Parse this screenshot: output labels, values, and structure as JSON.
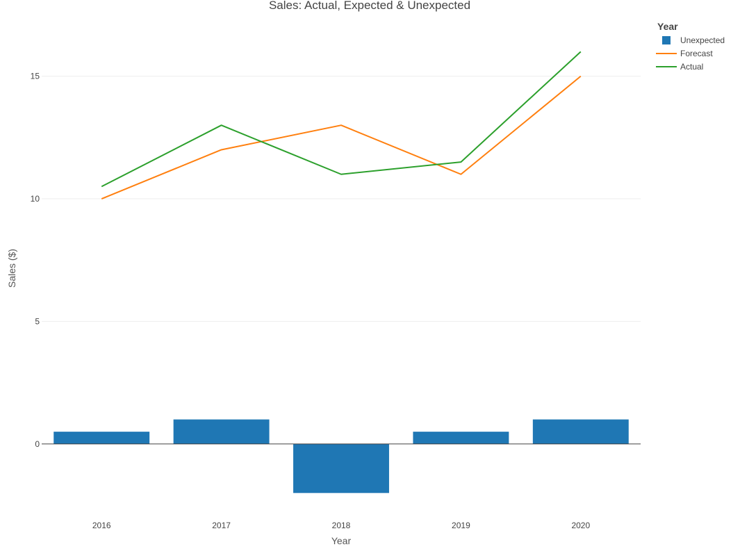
{
  "chart_data": {
    "type": "bar",
    "title": "Sales: Actual, Expected & Unexpected",
    "xlabel": "Year",
    "ylabel": "Sales ($)",
    "categories": [
      "2016",
      "2017",
      "2018",
      "2019",
      "2020"
    ],
    "ylim": [
      -2.7,
      17.4
    ],
    "yticks": [
      0,
      5,
      10,
      15
    ],
    "grid": true,
    "legend": {
      "title": "Year",
      "placement": "top-right"
    },
    "series": [
      {
        "name": "Unexpected",
        "type": "bar",
        "color": "#1f77b4",
        "values": [
          0.5,
          1,
          -2,
          0.5,
          1
        ]
      },
      {
        "name": "Forecast",
        "type": "line",
        "color": "#ff7f0e",
        "values": [
          10,
          12,
          13,
          11,
          15
        ]
      },
      {
        "name": "Actual",
        "type": "line",
        "color": "#2ca02c",
        "values": [
          10.5,
          13,
          11,
          11.5,
          16
        ]
      }
    ]
  }
}
